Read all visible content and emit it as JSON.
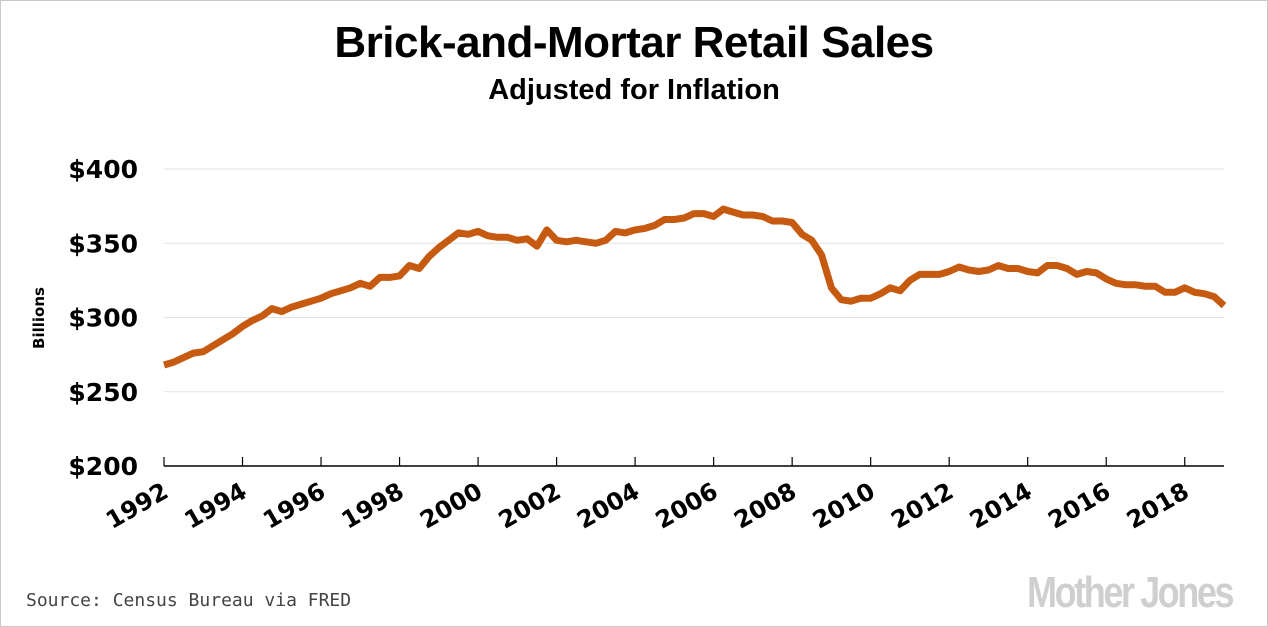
{
  "chart_data": {
    "type": "line",
    "title": "Brick-and-Mortar Retail Sales",
    "subtitle": "Adjusted for Inflation",
    "xlabel": "",
    "ylabel": "Billions",
    "ylim": [
      200,
      400
    ],
    "xlim": [
      1992,
      2019
    ],
    "grid": true,
    "legend": "none",
    "yticks": [
      {
        "value": 200,
        "label": "$200"
      },
      {
        "value": 250,
        "label": "$250"
      },
      {
        "value": 300,
        "label": "$300"
      },
      {
        "value": 350,
        "label": "$350"
      },
      {
        "value": 400,
        "label": "$400"
      }
    ],
    "xticks": [
      {
        "value": 1992,
        "label": "1992"
      },
      {
        "value": 1994,
        "label": "1994"
      },
      {
        "value": 1996,
        "label": "1996"
      },
      {
        "value": 1998,
        "label": "1998"
      },
      {
        "value": 2000,
        "label": "2000"
      },
      {
        "value": 2002,
        "label": "2002"
      },
      {
        "value": 2004,
        "label": "2004"
      },
      {
        "value": 2006,
        "label": "2006"
      },
      {
        "value": 2008,
        "label": "2008"
      },
      {
        "value": 2010,
        "label": "2010"
      },
      {
        "value": 2012,
        "label": "2012"
      },
      {
        "value": 2014,
        "label": "2014"
      },
      {
        "value": 2016,
        "label": "2016"
      },
      {
        "value": 2018,
        "label": "2018"
      }
    ],
    "series": [
      {
        "name": "Brick-and-mortar retail sales (inflation-adjusted, $B)",
        "color": "#c65a11",
        "x": [
          1992.0,
          1992.25,
          1992.5,
          1992.75,
          1993.0,
          1993.25,
          1993.5,
          1993.75,
          1994.0,
          1994.25,
          1994.5,
          1994.75,
          1995.0,
          1995.25,
          1995.5,
          1995.75,
          1996.0,
          1996.25,
          1996.5,
          1996.75,
          1997.0,
          1997.25,
          1997.5,
          1997.75,
          1998.0,
          1998.25,
          1998.5,
          1998.75,
          1999.0,
          1999.25,
          1999.5,
          1999.75,
          2000.0,
          2000.25,
          2000.5,
          2000.75,
          2001.0,
          2001.25,
          2001.5,
          2001.75,
          2002.0,
          2002.25,
          2002.5,
          2002.75,
          2003.0,
          2003.25,
          2003.5,
          2003.75,
          2004.0,
          2004.25,
          2004.5,
          2004.75,
          2005.0,
          2005.25,
          2005.5,
          2005.75,
          2006.0,
          2006.25,
          2006.5,
          2006.75,
          2007.0,
          2007.25,
          2007.5,
          2007.75,
          2008.0,
          2008.25,
          2008.5,
          2008.75,
          2009.0,
          2009.25,
          2009.5,
          2009.75,
          2010.0,
          2010.25,
          2010.5,
          2010.75,
          2011.0,
          2011.25,
          2011.5,
          2011.75,
          2012.0,
          2012.25,
          2012.5,
          2012.75,
          2013.0,
          2013.25,
          2013.5,
          2013.75,
          2014.0,
          2014.25,
          2014.5,
          2014.75,
          2015.0,
          2015.25,
          2015.5,
          2015.75,
          2016.0,
          2016.25,
          2016.5,
          2016.75,
          2017.0,
          2017.25,
          2017.5,
          2017.75,
          2018.0,
          2018.25,
          2018.5,
          2018.75,
          2019.0
        ],
        "values": [
          268,
          270,
          273,
          276,
          277,
          281,
          285,
          289,
          294,
          298,
          301,
          306,
          304,
          307,
          309,
          311,
          313,
          316,
          318,
          320,
          323,
          321,
          327,
          327,
          328,
          335,
          333,
          341,
          347,
          352,
          357,
          356,
          358,
          355,
          354,
          354,
          352,
          353,
          348,
          359,
          352,
          351,
          352,
          351,
          350,
          352,
          358,
          357,
          359,
          360,
          362,
          366,
          366,
          367,
          370,
          370,
          368,
          373,
          371,
          369,
          369,
          368,
          365,
          365,
          364,
          356,
          352,
          342,
          320,
          312,
          311,
          313,
          313,
          316,
          320,
          318,
          325,
          329,
          329,
          329,
          331,
          334,
          332,
          331,
          332,
          335,
          333,
          333,
          331,
          330,
          335,
          335,
          333,
          329,
          331,
          330,
          326,
          323,
          322,
          322,
          321,
          321,
          317,
          317,
          320,
          317,
          316,
          314,
          308
        ]
      }
    ]
  },
  "footer": {
    "source": "Source: Census Bureau via FRED",
    "logo": "Mother Jones"
  }
}
